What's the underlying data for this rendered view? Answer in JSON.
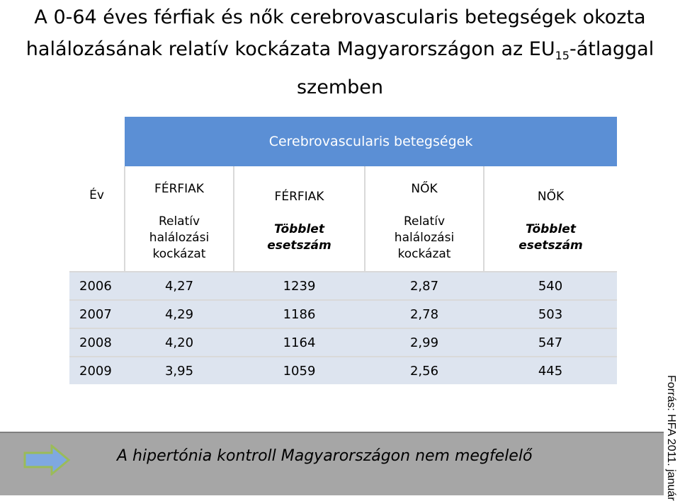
{
  "title": {
    "line1": "A 0-64 éves férfiak és nők cerebrovascularis betegségek okozta",
    "line2_a": "halálozásának relatív kockázata Magyarországon az EU",
    "line2_sub": "15",
    "line2_b": "-átlaggal",
    "line3": "szemben"
  },
  "table": {
    "group_header": "Cerebrovascularis betegségek",
    "year_header": "Év",
    "columns": [
      {
        "group": "FÉRFIAK",
        "label": "Relatív halálozási kockázat",
        "emphasis": false
      },
      {
        "group": "FÉRFIAK",
        "label": "Többlet esetszám",
        "emphasis": true
      },
      {
        "group": "NŐK",
        "label": "Relatív halálozási kockázat",
        "emphasis": false
      },
      {
        "group": "NŐK",
        "label": "Többlet esetszám",
        "emphasis": true
      }
    ],
    "rows": [
      {
        "year": "2006",
        "values": [
          "4,27",
          "1239",
          "2,87",
          "540"
        ]
      },
      {
        "year": "2007",
        "values": [
          "4,29",
          "1186",
          "2,78",
          "503"
        ]
      },
      {
        "year": "2008",
        "values": [
          "4,20",
          "1164",
          "2,99",
          "547"
        ]
      },
      {
        "year": "2009",
        "values": [
          "3,95",
          "1059",
          "2,56",
          "445"
        ]
      }
    ]
  },
  "banner": {
    "icon": "right-arrow-icon",
    "text": "A hipertónia kontroll Magyarországon nem megfelelő"
  },
  "source": "Forrás: HFA 2011. január",
  "colors": {
    "header_blue": "#5b8fd5",
    "row_shade": "#dde4ef",
    "banner_gray": "#a6a6a6",
    "arrow_fill": "#7fa8e0",
    "arrow_stroke": "#9bbb59"
  }
}
